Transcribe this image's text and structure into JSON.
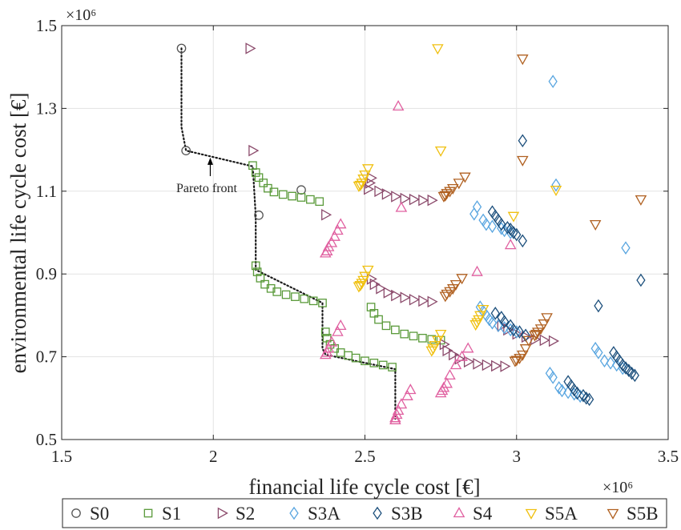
{
  "chart_data": {
    "type": "scatter",
    "xlabel": "financial life cycle cost [€]",
    "ylabel": "environmental life cycle cost [€]",
    "x_exponent": "×10⁶",
    "y_exponent": "×10⁶",
    "xlim": [
      1.5,
      3.5
    ],
    "ylim": [
      0.5,
      1.5
    ],
    "xticks": [
      "1.5",
      "2",
      "2.5",
      "3",
      "3.5"
    ],
    "yticks": [
      "0.5",
      "0.7",
      "0.9",
      "1.1",
      "1.3",
      "1.5"
    ],
    "grid": true,
    "legend_position": "bottom",
    "annotation": {
      "text": "Pareto front",
      "x": 1.99,
      "y": 1.185
    },
    "pareto_front": [
      [
        1.895,
        1.445
      ],
      [
        1.895,
        1.345
      ],
      [
        1.895,
        1.255
      ],
      [
        1.91,
        1.198
      ],
      [
        2.13,
        1.16
      ],
      [
        2.14,
        1.04
      ],
      [
        2.14,
        0.925
      ],
      [
        2.14,
        0.91
      ],
      [
        2.36,
        0.83
      ],
      [
        2.36,
        0.72
      ],
      [
        2.37,
        0.705
      ],
      [
        2.6,
        0.67
      ],
      [
        2.6,
        0.58
      ],
      [
        2.6,
        0.55
      ]
    ],
    "series": [
      {
        "name": "S0",
        "marker": "circle",
        "color": "#555555",
        "points": [
          [
            1.895,
            1.445
          ],
          [
            1.91,
            1.198
          ],
          [
            2.29,
            1.103
          ],
          [
            2.15,
            1.042
          ]
        ]
      },
      {
        "name": "S1",
        "marker": "square",
        "color": "#5a9a3a",
        "points": [
          [
            2.13,
            1.162
          ],
          [
            2.14,
            1.145
          ],
          [
            2.15,
            1.133
          ],
          [
            2.165,
            1.12
          ],
          [
            2.18,
            1.107
          ],
          [
            2.2,
            1.098
          ],
          [
            2.23,
            1.092
          ],
          [
            2.26,
            1.088
          ],
          [
            2.29,
            1.085
          ],
          [
            2.32,
            1.08
          ],
          [
            2.35,
            1.075
          ],
          [
            2.14,
            0.92
          ],
          [
            2.145,
            0.905
          ],
          [
            2.155,
            0.89
          ],
          [
            2.17,
            0.875
          ],
          [
            2.19,
            0.865
          ],
          [
            2.21,
            0.857
          ],
          [
            2.24,
            0.85
          ],
          [
            2.27,
            0.845
          ],
          [
            2.3,
            0.84
          ],
          [
            2.33,
            0.835
          ],
          [
            2.36,
            0.83
          ],
          [
            2.52,
            0.82
          ],
          [
            2.53,
            0.805
          ],
          [
            2.545,
            0.79
          ],
          [
            2.57,
            0.775
          ],
          [
            2.6,
            0.765
          ],
          [
            2.63,
            0.755
          ],
          [
            2.66,
            0.75
          ],
          [
            2.69,
            0.745
          ],
          [
            2.72,
            0.742
          ],
          [
            2.75,
            0.74
          ],
          [
            2.37,
            0.76
          ],
          [
            2.375,
            0.745
          ],
          [
            2.385,
            0.73
          ],
          [
            2.4,
            0.72
          ],
          [
            2.42,
            0.71
          ],
          [
            2.445,
            0.703
          ],
          [
            2.47,
            0.697
          ],
          [
            2.5,
            0.69
          ],
          [
            2.53,
            0.685
          ],
          [
            2.56,
            0.68
          ],
          [
            2.59,
            0.675
          ]
        ]
      },
      {
        "name": "S2",
        "marker": "triangle-right",
        "color": "#8b4a6b",
        "points": [
          [
            2.12,
            1.445
          ],
          [
            2.13,
            1.198
          ],
          [
            2.37,
            1.043
          ],
          [
            2.52,
            1.132
          ],
          [
            2.515,
            1.12
          ],
          [
            2.51,
            1.105
          ],
          [
            2.545,
            1.1
          ],
          [
            2.57,
            1.093
          ],
          [
            2.6,
            1.087
          ],
          [
            2.63,
            1.082
          ],
          [
            2.66,
            1.08
          ],
          [
            2.69,
            1.078
          ],
          [
            2.72,
            1.078
          ],
          [
            2.52,
            0.888
          ],
          [
            2.53,
            0.875
          ],
          [
            2.55,
            0.865
          ],
          [
            2.575,
            0.855
          ],
          [
            2.6,
            0.848
          ],
          [
            2.63,
            0.843
          ],
          [
            2.66,
            0.838
          ],
          [
            2.69,
            0.835
          ],
          [
            2.72,
            0.833
          ],
          [
            2.76,
            0.73
          ],
          [
            2.77,
            0.715
          ],
          [
            2.79,
            0.705
          ],
          [
            2.81,
            0.695
          ],
          [
            2.84,
            0.688
          ],
          [
            2.87,
            0.683
          ],
          [
            2.9,
            0.68
          ],
          [
            2.93,
            0.678
          ],
          [
            2.96,
            0.677
          ],
          [
            2.95,
            0.775
          ],
          [
            2.97,
            0.765
          ],
          [
            3.0,
            0.755
          ],
          [
            3.03,
            0.748
          ],
          [
            3.06,
            0.742
          ],
          [
            3.09,
            0.74
          ],
          [
            3.12,
            0.738
          ]
        ]
      },
      {
        "name": "S3A",
        "marker": "diamond",
        "color": "#5aa6e0",
        "points": [
          [
            3.12,
            1.365
          ],
          [
            3.13,
            1.115
          ],
          [
            2.87,
            1.062
          ],
          [
            2.86,
            1.045
          ],
          [
            2.89,
            1.03
          ],
          [
            2.9,
            1.02
          ],
          [
            2.92,
            1.015
          ],
          [
            2.95,
            1.01
          ],
          [
            2.96,
            1.005
          ],
          [
            2.98,
            1.0
          ],
          [
            3.36,
            0.963
          ],
          [
            2.88,
            0.82
          ],
          [
            2.89,
            0.81
          ],
          [
            2.9,
            0.8
          ],
          [
            2.91,
            0.79
          ],
          [
            2.92,
            0.782
          ],
          [
            2.94,
            0.775
          ],
          [
            2.96,
            0.77
          ],
          [
            2.98,
            0.765
          ],
          [
            3.0,
            0.76
          ],
          [
            3.26,
            0.72
          ],
          [
            3.27,
            0.71
          ],
          [
            3.11,
            0.66
          ],
          [
            3.12,
            0.65
          ],
          [
            3.14,
            0.625
          ],
          [
            3.15,
            0.618
          ],
          [
            3.17,
            0.614
          ],
          [
            3.19,
            0.61
          ],
          [
            3.21,
            0.605
          ],
          [
            3.29,
            0.69
          ],
          [
            3.31,
            0.685
          ],
          [
            3.33,
            0.68
          ],
          [
            3.35,
            0.672
          ]
        ]
      },
      {
        "name": "S3B",
        "marker": "diamond",
        "color": "#1c4f7c",
        "points": [
          [
            3.02,
            1.222
          ],
          [
            3.41,
            0.885
          ],
          [
            3.27,
            0.823
          ],
          [
            2.92,
            1.05
          ],
          [
            2.93,
            1.04
          ],
          [
            2.94,
            1.03
          ],
          [
            2.95,
            1.02
          ],
          [
            2.97,
            1.012
          ],
          [
            2.98,
            1.008
          ],
          [
            2.99,
            1.0
          ],
          [
            3.0,
            0.995
          ],
          [
            3.02,
            0.98
          ],
          [
            2.93,
            0.805
          ],
          [
            2.95,
            0.795
          ],
          [
            2.96,
            0.785
          ],
          [
            2.98,
            0.775
          ],
          [
            2.99,
            0.765
          ],
          [
            3.01,
            0.76
          ],
          [
            3.03,
            0.752
          ],
          [
            3.17,
            0.64
          ],
          [
            3.18,
            0.63
          ],
          [
            3.19,
            0.62
          ],
          [
            3.2,
            0.612
          ],
          [
            3.22,
            0.606
          ],
          [
            3.23,
            0.6
          ],
          [
            3.24,
            0.597
          ],
          [
            3.32,
            0.71
          ],
          [
            3.33,
            0.7
          ],
          [
            3.34,
            0.69
          ],
          [
            3.35,
            0.68
          ],
          [
            3.36,
            0.673
          ],
          [
            3.37,
            0.667
          ],
          [
            3.38,
            0.66
          ],
          [
            3.39,
            0.655
          ]
        ]
      },
      {
        "name": "S4",
        "marker": "triangle-up",
        "color": "#e060a0",
        "points": [
          [
            2.61,
            1.305
          ],
          [
            2.62,
            1.06
          ],
          [
            2.42,
            1.02
          ],
          [
            2.41,
            1.005
          ],
          [
            2.4,
            0.99
          ],
          [
            2.39,
            0.975
          ],
          [
            2.38,
            0.965
          ],
          [
            2.375,
            0.955
          ],
          [
            2.37,
            0.95
          ],
          [
            2.87,
            0.905
          ],
          [
            2.42,
            0.775
          ],
          [
            2.41,
            0.76
          ],
          [
            2.39,
            0.735
          ],
          [
            2.38,
            0.72
          ],
          [
            2.375,
            0.71
          ],
          [
            2.37,
            0.705
          ],
          [
            2.84,
            0.72
          ],
          [
            2.82,
            0.7
          ],
          [
            2.8,
            0.68
          ],
          [
            2.78,
            0.655
          ],
          [
            2.77,
            0.635
          ],
          [
            2.76,
            0.625
          ],
          [
            2.755,
            0.618
          ],
          [
            2.75,
            0.612
          ],
          [
            2.65,
            0.62
          ],
          [
            2.64,
            0.605
          ],
          [
            2.62,
            0.585
          ],
          [
            2.61,
            0.57
          ],
          [
            2.605,
            0.56
          ],
          [
            2.6,
            0.552
          ],
          [
            2.6,
            0.547
          ],
          [
            2.98,
            0.97
          ]
        ]
      },
      {
        "name": "S5A",
        "marker": "triangle-down",
        "color": "#f0c010",
        "points": [
          [
            2.74,
            1.445
          ],
          [
            2.75,
            1.198
          ],
          [
            3.13,
            1.103
          ],
          [
            2.99,
            1.04
          ],
          [
            2.51,
            1.155
          ],
          [
            2.5,
            1.14
          ],
          [
            2.495,
            1.13
          ],
          [
            2.49,
            1.12
          ],
          [
            2.485,
            1.115
          ],
          [
            2.48,
            1.113
          ],
          [
            2.51,
            0.91
          ],
          [
            2.5,
            0.895
          ],
          [
            2.495,
            0.885
          ],
          [
            2.49,
            0.878
          ],
          [
            2.485,
            0.873
          ],
          [
            2.48,
            0.87
          ],
          [
            2.89,
            0.815
          ],
          [
            2.88,
            0.8
          ],
          [
            2.875,
            0.79
          ],
          [
            2.87,
            0.783
          ],
          [
            2.865,
            0.778
          ],
          [
            2.75,
            0.755
          ],
          [
            2.74,
            0.74
          ],
          [
            2.73,
            0.728
          ],
          [
            2.725,
            0.72
          ],
          [
            2.72,
            0.715
          ]
        ]
      },
      {
        "name": "S5B",
        "marker": "triangle-down",
        "color": "#b06020",
        "points": [
          [
            3.02,
            1.42
          ],
          [
            3.02,
            1.175
          ],
          [
            3.41,
            1.08
          ],
          [
            3.26,
            1.02
          ],
          [
            2.83,
            1.135
          ],
          [
            2.81,
            1.12
          ],
          [
            2.79,
            1.107
          ],
          [
            2.78,
            1.1
          ],
          [
            2.77,
            1.095
          ],
          [
            2.765,
            1.09
          ],
          [
            2.76,
            1.088
          ],
          [
            2.82,
            0.89
          ],
          [
            2.8,
            0.875
          ],
          [
            2.79,
            0.865
          ],
          [
            2.78,
            0.858
          ],
          [
            2.77,
            0.852
          ],
          [
            2.765,
            0.847
          ],
          [
            3.1,
            0.795
          ],
          [
            3.09,
            0.78
          ],
          [
            3.08,
            0.768
          ],
          [
            3.07,
            0.76
          ],
          [
            3.065,
            0.755
          ],
          [
            3.06,
            0.752
          ],
          [
            3.04,
            0.74
          ],
          [
            3.03,
            0.72
          ],
          [
            3.02,
            0.705
          ],
          [
            3.01,
            0.697
          ],
          [
            3.0,
            0.692
          ],
          [
            2.995,
            0.69
          ]
        ]
      }
    ]
  }
}
